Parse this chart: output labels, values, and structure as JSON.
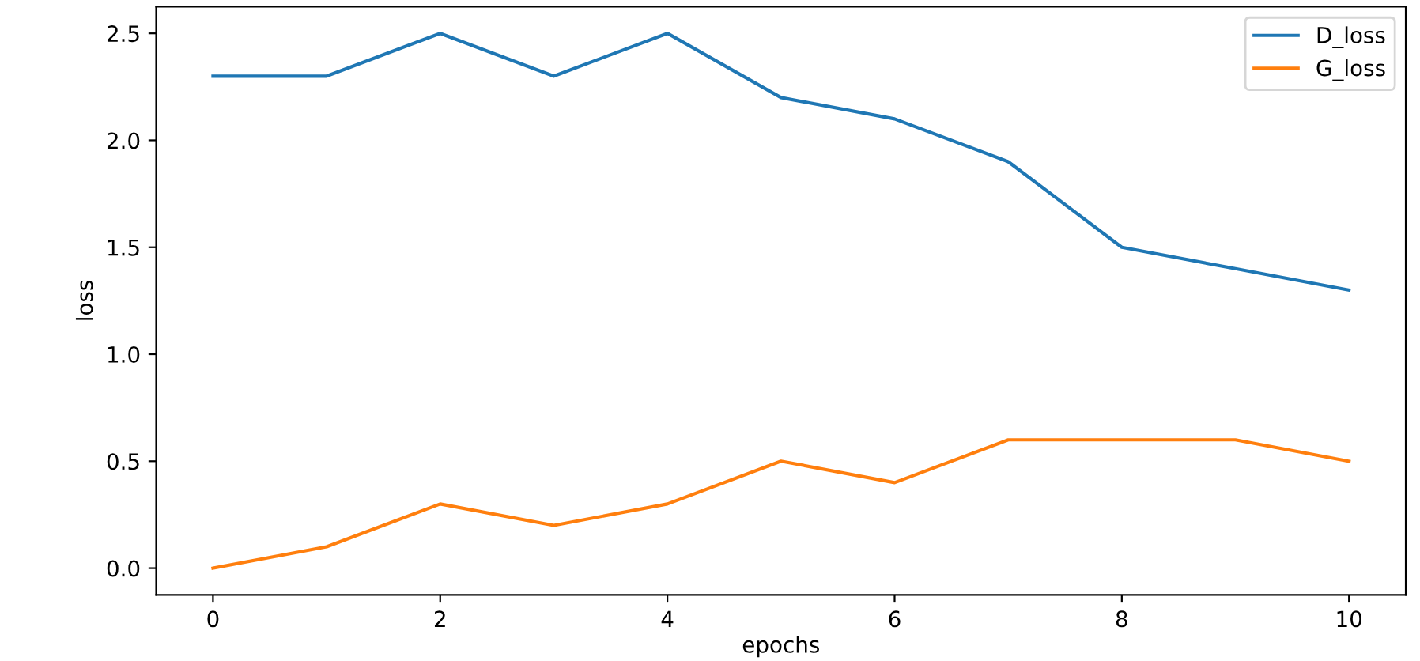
{
  "chart_data": {
    "type": "line",
    "xlabel": "epochs",
    "ylabel": "loss",
    "x": [
      0,
      1,
      2,
      3,
      4,
      5,
      6,
      7,
      8,
      9,
      10
    ],
    "series": [
      {
        "name": "D_loss",
        "color": "#1f77b4",
        "values": [
          2.3,
          2.3,
          2.5,
          2.3,
          2.5,
          2.2,
          2.1,
          1.9,
          1.5,
          1.4,
          1.3
        ]
      },
      {
        "name": "G_loss",
        "color": "#ff7f0e",
        "values": [
          0.0,
          0.1,
          0.3,
          0.2,
          0.3,
          0.5,
          0.4,
          0.6,
          0.6,
          0.6,
          0.5
        ]
      }
    ],
    "xlim": [
      -0.5,
      10.5
    ],
    "ylim": [
      -0.125,
      2.625
    ],
    "xticks": [
      0,
      2,
      4,
      6,
      8,
      10
    ],
    "yticks": [
      {
        "value": 0,
        "label": "0.0"
      },
      {
        "value": 0.5,
        "label": "0.5"
      },
      {
        "value": 1,
        "label": "1.0"
      },
      {
        "value": 1.5,
        "label": "1.5"
      },
      {
        "value": 2,
        "label": "2.0"
      },
      {
        "value": 2.5,
        "label": "2.5"
      }
    ],
    "legend": "top right",
    "grid": false
  }
}
